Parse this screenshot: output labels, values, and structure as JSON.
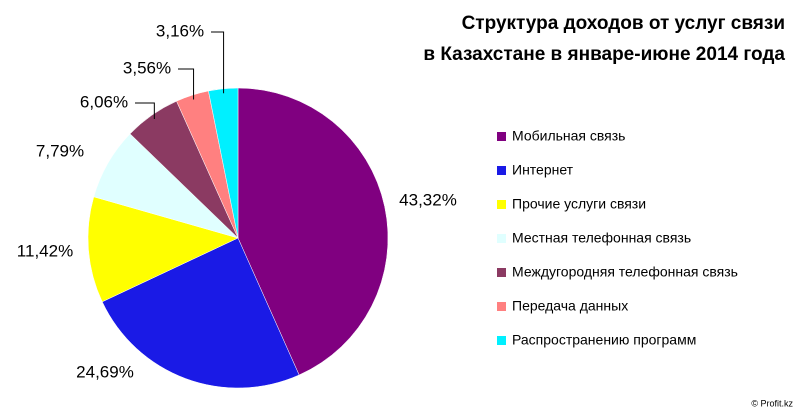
{
  "chart_data": {
    "type": "pie",
    "title": [
      "Структура доходов от услуг связи",
      "в Казахстане в январе-июне 2014 года"
    ],
    "categories": [
      "Мобильная связь",
      "Интернет",
      "Прочие услуги связи",
      "Местная телефонная связь",
      "Междугородняя телефонная связь",
      "Передача данных",
      "Распространению программ"
    ],
    "values": [
      43.32,
      24.69,
      11.42,
      7.79,
      6.06,
      3.56,
      3.16
    ],
    "value_labels": [
      "43,32%",
      "24,69%",
      "11,42%",
      "7,79%",
      "6,06%",
      "3,56%",
      "3,16%"
    ],
    "colors": [
      "#800080",
      "#1a1ae6",
      "#ffff00",
      "#e0ffff",
      "#8b3a62",
      "#ff8080",
      "#00f0ff"
    ],
    "legend": "right",
    "credit": "© Profit.kz"
  }
}
